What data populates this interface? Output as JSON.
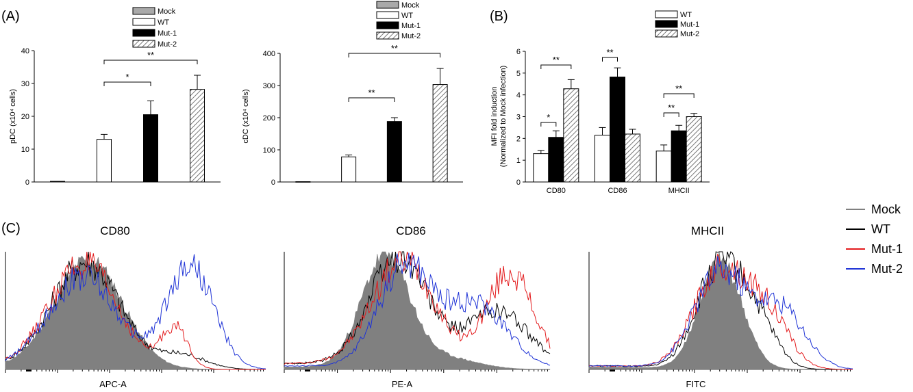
{
  "panels": {
    "a": "(A)",
    "b": "(B)",
    "c": "(C)"
  },
  "colors": {
    "mock": "#a9a9a9",
    "wt": "#ffffff",
    "mut1": "#000000",
    "mut2_hatch": "#777777",
    "hist_mock": "#808080",
    "hist_wt": "#000000",
    "hist_mut1": "#e31a1c",
    "hist_mut2": "#1f33d6"
  },
  "bar_legend_a": [
    "Mock",
    "WT",
    "Mut-1",
    "Mut-2"
  ],
  "bar_legend_b": [
    "WT",
    "Mut-1",
    "Mut-2"
  ],
  "hist_legend": [
    "Mock",
    "WT",
    "Mut-1",
    "Mut-2"
  ],
  "chart_data": [
    {
      "type": "bar",
      "ylabel": "pDC (x10⁴ cells)",
      "categories": [
        "Mock",
        "WT",
        "Mut-1",
        "Mut-2"
      ],
      "values": [
        0.2,
        13,
        20.5,
        28.2
      ],
      "errors": [
        0,
        1.5,
        4.2,
        4.3
      ],
      "ylim": [
        0,
        40
      ],
      "yticks": [
        "0",
        "10",
        "20",
        "30",
        "40"
      ],
      "significance": [
        {
          "from": "WT",
          "to": "Mut-1",
          "label": "*"
        },
        {
          "from": "WT",
          "to": "Mut-2",
          "label": "**"
        }
      ]
    },
    {
      "type": "bar",
      "ylabel": "cDC (x10⁴ cells)",
      "categories": [
        "Mock",
        "WT",
        "Mut-1",
        "Mut-2"
      ],
      "values": [
        1,
        78,
        188,
        303
      ],
      "errors": [
        0,
        6,
        12,
        50
      ],
      "ylim": [
        0,
        400
      ],
      "yticks": [
        "0",
        "100",
        "200",
        "300",
        "400"
      ],
      "significance": [
        {
          "from": "WT",
          "to": "Mut-1",
          "label": "**"
        },
        {
          "from": "WT",
          "to": "Mut-2",
          "label": "**"
        }
      ]
    },
    {
      "type": "bar",
      "ylabel": "MFI fold induction",
      "ylabel2": "(Normalized to Mock infection)",
      "categories": [
        "CD80",
        "CD86",
        "MHCII"
      ],
      "series": [
        {
          "name": "WT",
          "values": [
            1.3,
            2.15,
            1.42
          ],
          "errors": [
            0.15,
            0.35,
            0.28
          ]
        },
        {
          "name": "Mut-1",
          "values": [
            2.05,
            4.82,
            2.35
          ],
          "errors": [
            0.3,
            0.42,
            0.25
          ]
        },
        {
          "name": "Mut-2",
          "values": [
            4.28,
            2.2,
            3.0
          ],
          "errors": [
            0.42,
            0.22,
            0.15
          ]
        }
      ],
      "ylim": [
        0,
        6
      ],
      "yticks": [
        "0",
        "1",
        "2",
        "3",
        "4",
        "5",
        "6"
      ],
      "significance": [
        {
          "category": "CD80",
          "from": "WT",
          "to": "Mut-1",
          "label": "*"
        },
        {
          "category": "CD80",
          "from": "WT",
          "to": "Mut-2",
          "label": "**"
        },
        {
          "category": "CD86",
          "from": "WT",
          "to": "Mut-1",
          "label": "**"
        },
        {
          "category": "MHCII",
          "from": "WT",
          "to": "Mut-1",
          "label": "**"
        },
        {
          "category": "MHCII",
          "from": "WT",
          "to": "Mut-2",
          "label": "**"
        }
      ]
    },
    {
      "type": "area",
      "title": "CD80",
      "xlabel": "APC-A",
      "scale": "log",
      "series": [
        {
          "name": "Mock",
          "peaks": [
            [
              0.32,
              0.92,
              0.13
            ]
          ],
          "tail": 0.02
        },
        {
          "name": "WT",
          "peaks": [
            [
              0.31,
              0.9,
              0.13
            ],
            [
              0.68,
              0.12,
              0.09
            ]
          ],
          "tail": 0.03
        },
        {
          "name": "Mut-1",
          "peaks": [
            [
              0.3,
              0.88,
              0.13
            ],
            [
              0.65,
              0.35,
              0.05
            ]
          ],
          "tail": 0.03
        },
        {
          "name": "Mut-2",
          "peaks": [
            [
              0.3,
              0.78,
              0.13
            ],
            [
              0.71,
              0.88,
              0.09
            ]
          ],
          "tail": 0.03
        }
      ]
    },
    {
      "type": "area",
      "title": "CD86",
      "xlabel": "PE-A",
      "scale": "log",
      "series": [
        {
          "name": "Mock",
          "peaks": [
            [
              0.38,
              0.95,
              0.09
            ],
            [
              0.6,
              0.1,
              0.12
            ]
          ],
          "tail": 0.02
        },
        {
          "name": "WT",
          "peaks": [
            [
              0.43,
              0.95,
              0.11
            ],
            [
              0.8,
              0.5,
              0.12
            ]
          ],
          "tail": 0.05
        },
        {
          "name": "Mut-1",
          "peaks": [
            [
              0.45,
              0.92,
              0.12
            ],
            [
              0.85,
              0.82,
              0.09
            ]
          ],
          "tail": 0.05
        },
        {
          "name": "Mut-2",
          "peaks": [
            [
              0.45,
              0.85,
              0.1
            ],
            [
              0.72,
              0.55,
              0.12
            ]
          ],
          "tail": 0.03
        }
      ]
    },
    {
      "type": "area",
      "title": "MHCII",
      "xlabel": "FITC",
      "scale": "log",
      "series": [
        {
          "name": "Mock",
          "peaks": [
            [
              0.5,
              0.92,
              0.08
            ]
          ],
          "tail": 0.02
        },
        {
          "name": "WT",
          "peaks": [
            [
              0.5,
              0.9,
              0.09
            ],
            [
              0.65,
              0.3,
              0.07
            ]
          ],
          "tail": 0.03
        },
        {
          "name": "Mut-1",
          "peaks": [
            [
              0.5,
              0.85,
              0.1
            ],
            [
              0.68,
              0.42,
              0.08
            ]
          ],
          "tail": 0.03
        },
        {
          "name": "Mut-2",
          "peaks": [
            [
              0.5,
              0.82,
              0.1
            ],
            [
              0.73,
              0.5,
              0.09
            ]
          ],
          "tail": 0.03
        }
      ]
    }
  ]
}
